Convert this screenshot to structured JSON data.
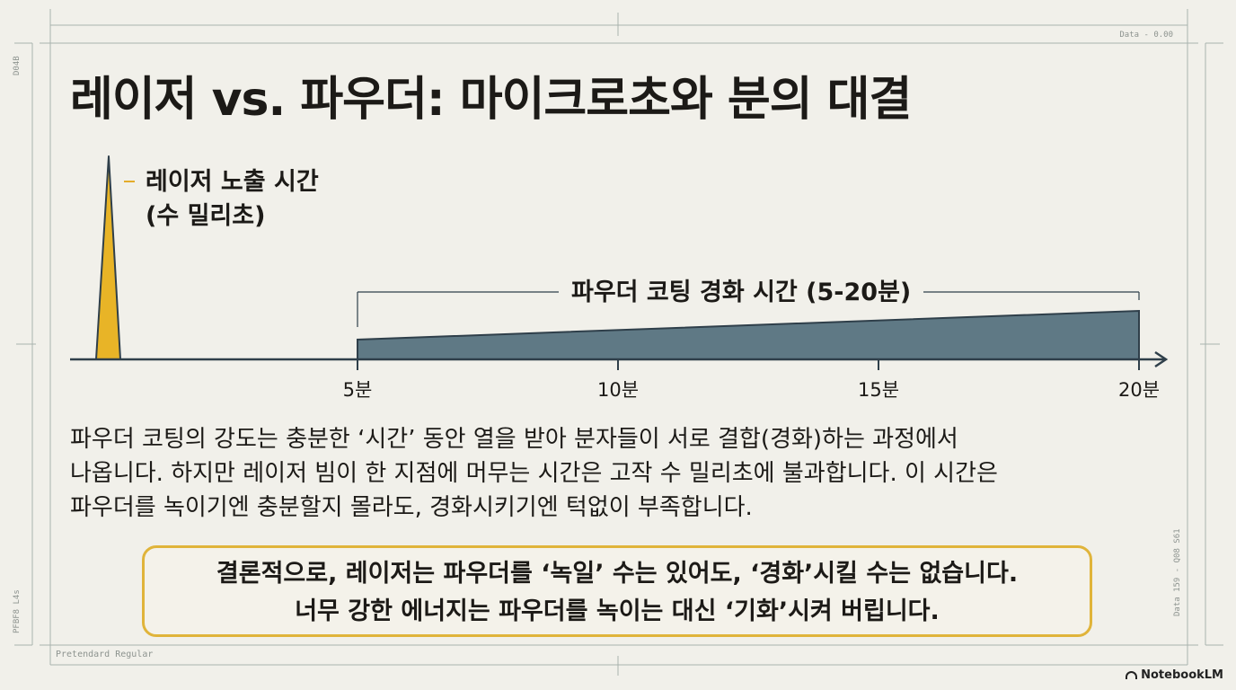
{
  "title": "레이저 vs. 파우더: 마이크로초와 분의 대결",
  "laser_label_line1": "레이저 노출 시간",
  "laser_label_line2": "(수 밀리초)",
  "powder_label": "파우더 코팅 경화 시간 (5-20분)",
  "axis_ticks": [
    "5분",
    "10분",
    "15분",
    "20분"
  ],
  "body_lines": [
    "파우더 코팅의 강도는 충분한 ‘시간’ 동안 열을 받아 분자들이 서로 결합(경화)하는 과정에서",
    "나옵니다. 하지만 레이저 빔이 한 지점에 머무는 시간은 고작 수 밀리초에 불과합니다. 이 시간은",
    "파우더를 녹이기엔 충분할지 몰라도, 경화시키기엔 턱없이 부족합니다."
  ],
  "conclusion_lines": [
    "결론적으로, 레이저는 파우더를 ‘녹일’ 수는 있어도, ‘경화’시킬 수는 없습니다.",
    "너무 강한 에너지는 파우더를 녹이는 대신 ‘기화’시켜 버립니다."
  ],
  "meta_top_right": "Data - 0.00",
  "meta_bottom_left": "Pretendard Regular",
  "meta_left_top": "D04B",
  "meta_left_bottom": "PFBF8 L4s",
  "meta_right_side": "Data 159 - Q08  S61",
  "brand": "NotebookLM",
  "colors": {
    "laser": "#e8b427",
    "powder": "#5f7985",
    "axis": "#2f3f4a",
    "frame": "#a9b3ae",
    "conclusion_border": "#e0b43a"
  }
}
